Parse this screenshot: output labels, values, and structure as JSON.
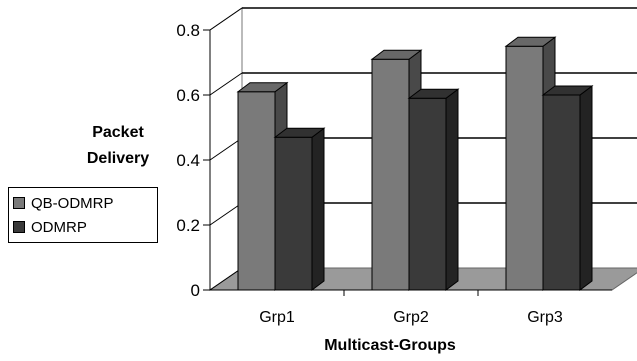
{
  "chart_data": {
    "type": "bar",
    "categories": [
      "Grp1",
      "Grp2",
      "Grp3"
    ],
    "series": [
      {
        "name": "QB-ODMRP",
        "values": [
          0.61,
          0.71,
          0.75
        ],
        "color": "#7a7a7a"
      },
      {
        "name": "ODMRP",
        "values": [
          0.47,
          0.59,
          0.6
        ],
        "color": "#3a3a3a"
      }
    ],
    "title": "",
    "xlabel": "Multicast-Groups",
    "ylabel_lines": [
      "Packet",
      "Delivery"
    ],
    "ylim": [
      0,
      0.8
    ],
    "yticks": [
      "0",
      "0.2",
      "0.4",
      "0.6",
      "0.8"
    ],
    "legend_position": "left",
    "grid": true,
    "style": "3d"
  }
}
